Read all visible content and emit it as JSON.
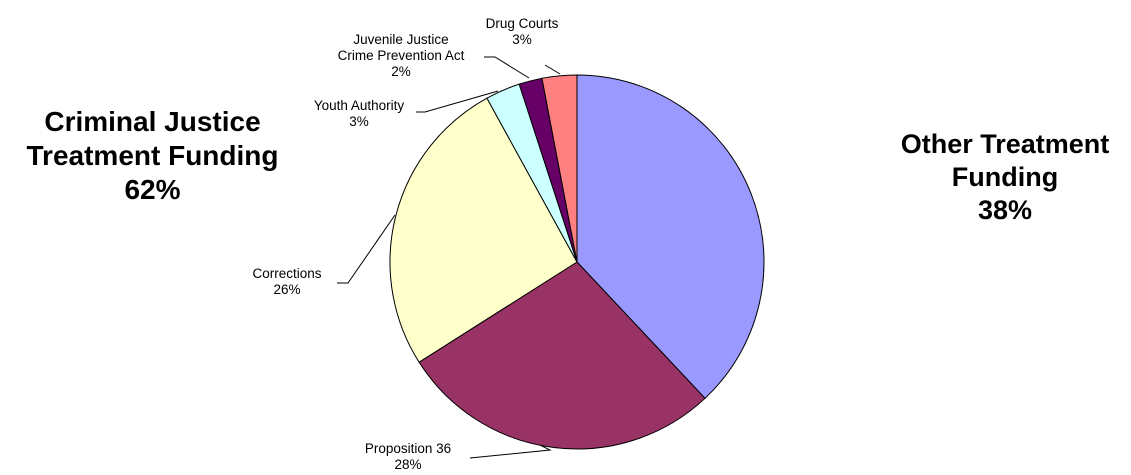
{
  "groups": {
    "left": {
      "line1": "Criminal Justice",
      "line2": "Treatment Funding",
      "value": "62%"
    },
    "right": {
      "line1": "Other Treatment",
      "line2": "Funding",
      "value": "38%"
    }
  },
  "chart_data": {
    "type": "pie",
    "title": "",
    "slices": [
      {
        "name": "Other Treatment Funding",
        "value": 38,
        "color": "#9999ff",
        "label_lines": [],
        "percent_text": ""
      },
      {
        "name": "Proposition 36",
        "value": 28,
        "color": "#993366",
        "label_lines": [
          "Proposition 36"
        ],
        "percent_text": "28%"
      },
      {
        "name": "Corrections",
        "value": 26,
        "color": "#ffffcc",
        "label_lines": [
          "Corrections"
        ],
        "percent_text": "26%"
      },
      {
        "name": "Youth Authority",
        "value": 3,
        "color": "#ccffff",
        "label_lines": [
          "Youth Authority"
        ],
        "percent_text": "3%"
      },
      {
        "name": "Juvenile Justice Crime Prevention Act",
        "value": 2,
        "color": "#660066",
        "label_lines": [
          "Juvenile Justice",
          "Crime Prevention Act"
        ],
        "percent_text": "2%"
      },
      {
        "name": "Drug Courts",
        "value": 3,
        "color": "#ff8080",
        "label_lines": [
          "Drug Courts"
        ],
        "percent_text": "3%"
      }
    ]
  }
}
